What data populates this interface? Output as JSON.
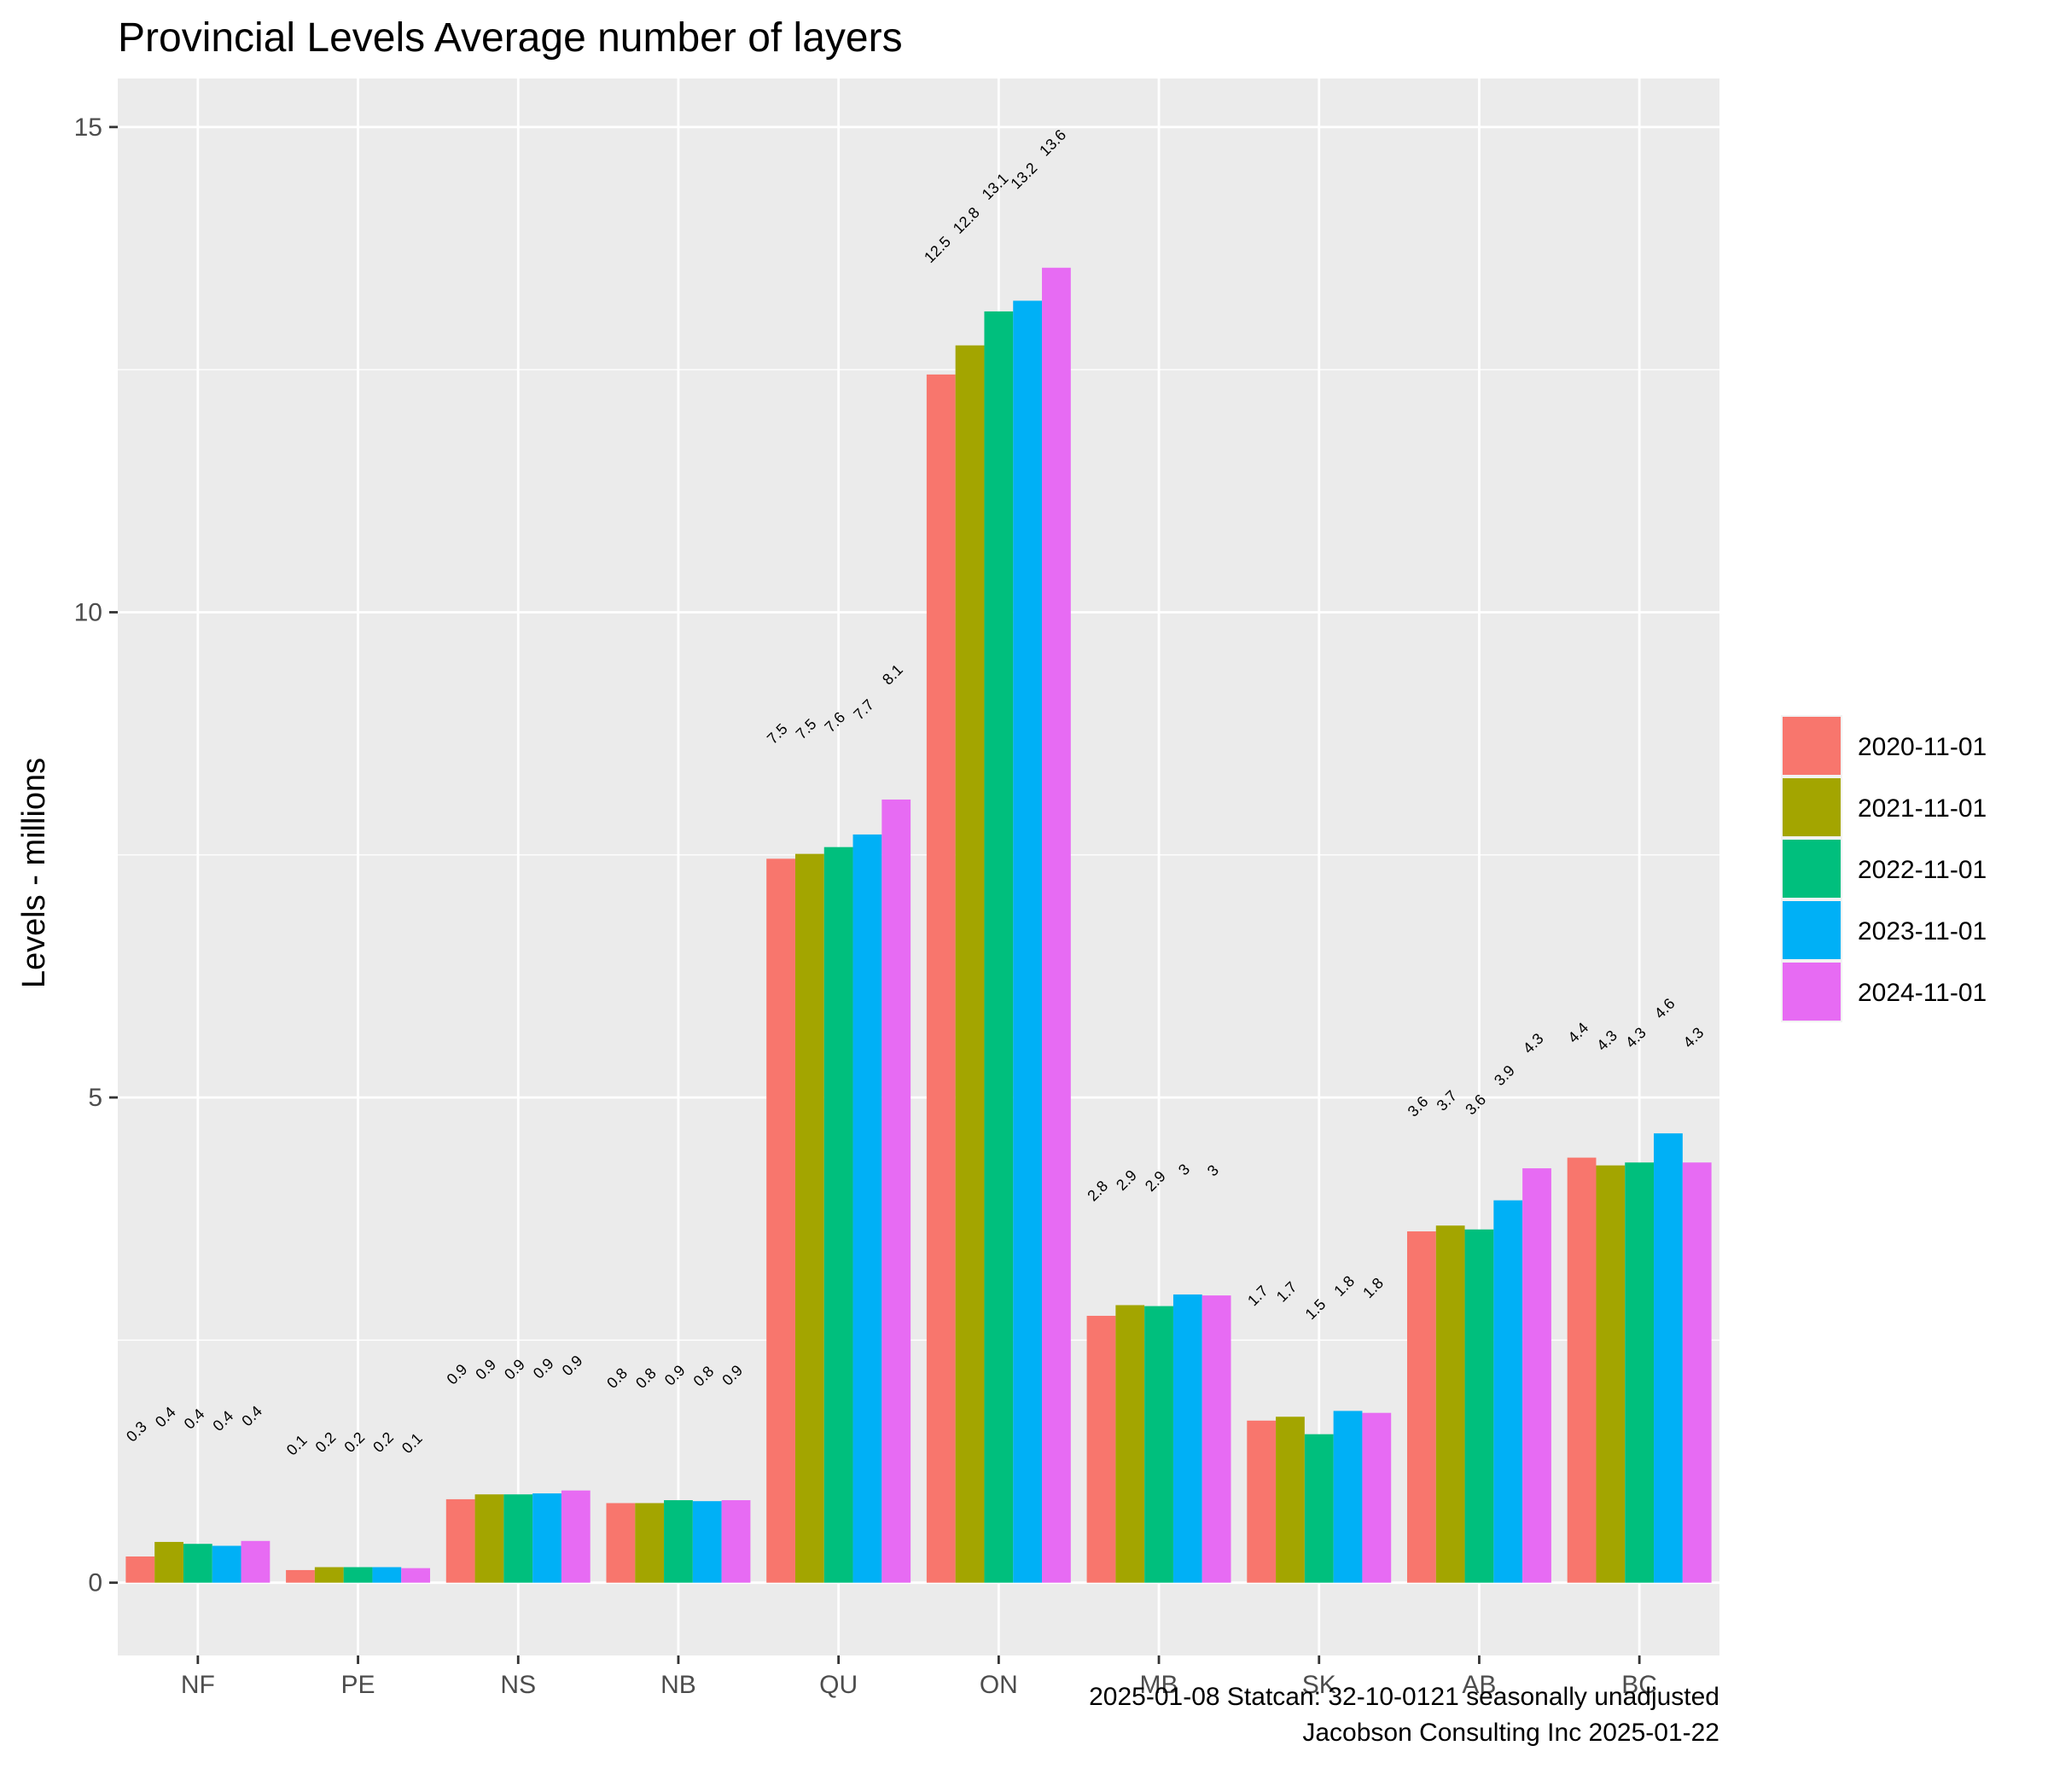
{
  "chart_data": {
    "type": "bar",
    "title": "Provincial Levels Average number of layers",
    "ylabel": "Levels - millions",
    "xlabel": "",
    "ylim": [
      -0.75,
      15.5
    ],
    "yticks": [
      0,
      5,
      10,
      15
    ],
    "grid": true,
    "legend_position": "right",
    "categories": [
      "NF",
      "PE",
      "NS",
      "NB",
      "QU",
      "ON",
      "MB",
      "SK",
      "AB",
      "BC"
    ],
    "series": [
      {
        "name": "2020-11-01",
        "color": "#F8766D",
        "values": [
          0.27,
          0.13,
          0.86,
          0.82,
          7.46,
          12.45,
          2.75,
          1.67,
          3.62,
          4.38
        ],
        "labels": [
          "0.3",
          "0.1",
          "0.9",
          "0.8",
          "7.5",
          "12.5",
          "2.8",
          "1.7",
          "3.6",
          "4.4"
        ]
      },
      {
        "name": "2021-11-01",
        "color": "#A3A500",
        "values": [
          0.42,
          0.16,
          0.91,
          0.82,
          7.51,
          12.75,
          2.86,
          1.71,
          3.68,
          4.3
        ],
        "labels": [
          "0.4",
          "0.2",
          "0.9",
          "0.8",
          "7.5",
          "12.8",
          "2.9",
          "1.7",
          "3.7",
          "4.3"
        ]
      },
      {
        "name": "2022-11-01",
        "color": "#00BF7D",
        "values": [
          0.4,
          0.16,
          0.91,
          0.85,
          7.58,
          13.1,
          2.85,
          1.53,
          3.64,
          4.33
        ],
        "labels": [
          "0.4",
          "0.2",
          "0.9",
          "0.9",
          "7.6",
          "13.1",
          "2.9",
          "1.5",
          "3.6",
          "4.3"
        ]
      },
      {
        "name": "2023-11-01",
        "color": "#00B0F6",
        "values": [
          0.38,
          0.16,
          0.92,
          0.84,
          7.71,
          13.21,
          2.97,
          1.77,
          3.94,
          4.63
        ],
        "labels": [
          "0.4",
          "0.2",
          "0.9",
          "0.8",
          "7.7",
          "13.2",
          "3",
          "1.8",
          "3.9",
          "4.6"
        ]
      },
      {
        "name": "2024-11-01",
        "color": "#E76BF3",
        "values": [
          0.43,
          0.15,
          0.95,
          0.85,
          8.07,
          13.55,
          2.96,
          1.75,
          4.27,
          4.33
        ],
        "labels": [
          "0.4",
          "0.1",
          "0.9",
          "0.9",
          "8.1",
          "13.6",
          "3",
          "1.8",
          "4.3",
          "4.3"
        ]
      }
    ],
    "caption": [
      "2025-01-08 Statcan: 32-10-0121 seasonally unadjusted",
      "Jacobson Consulting Inc 2025-01-22"
    ]
  }
}
